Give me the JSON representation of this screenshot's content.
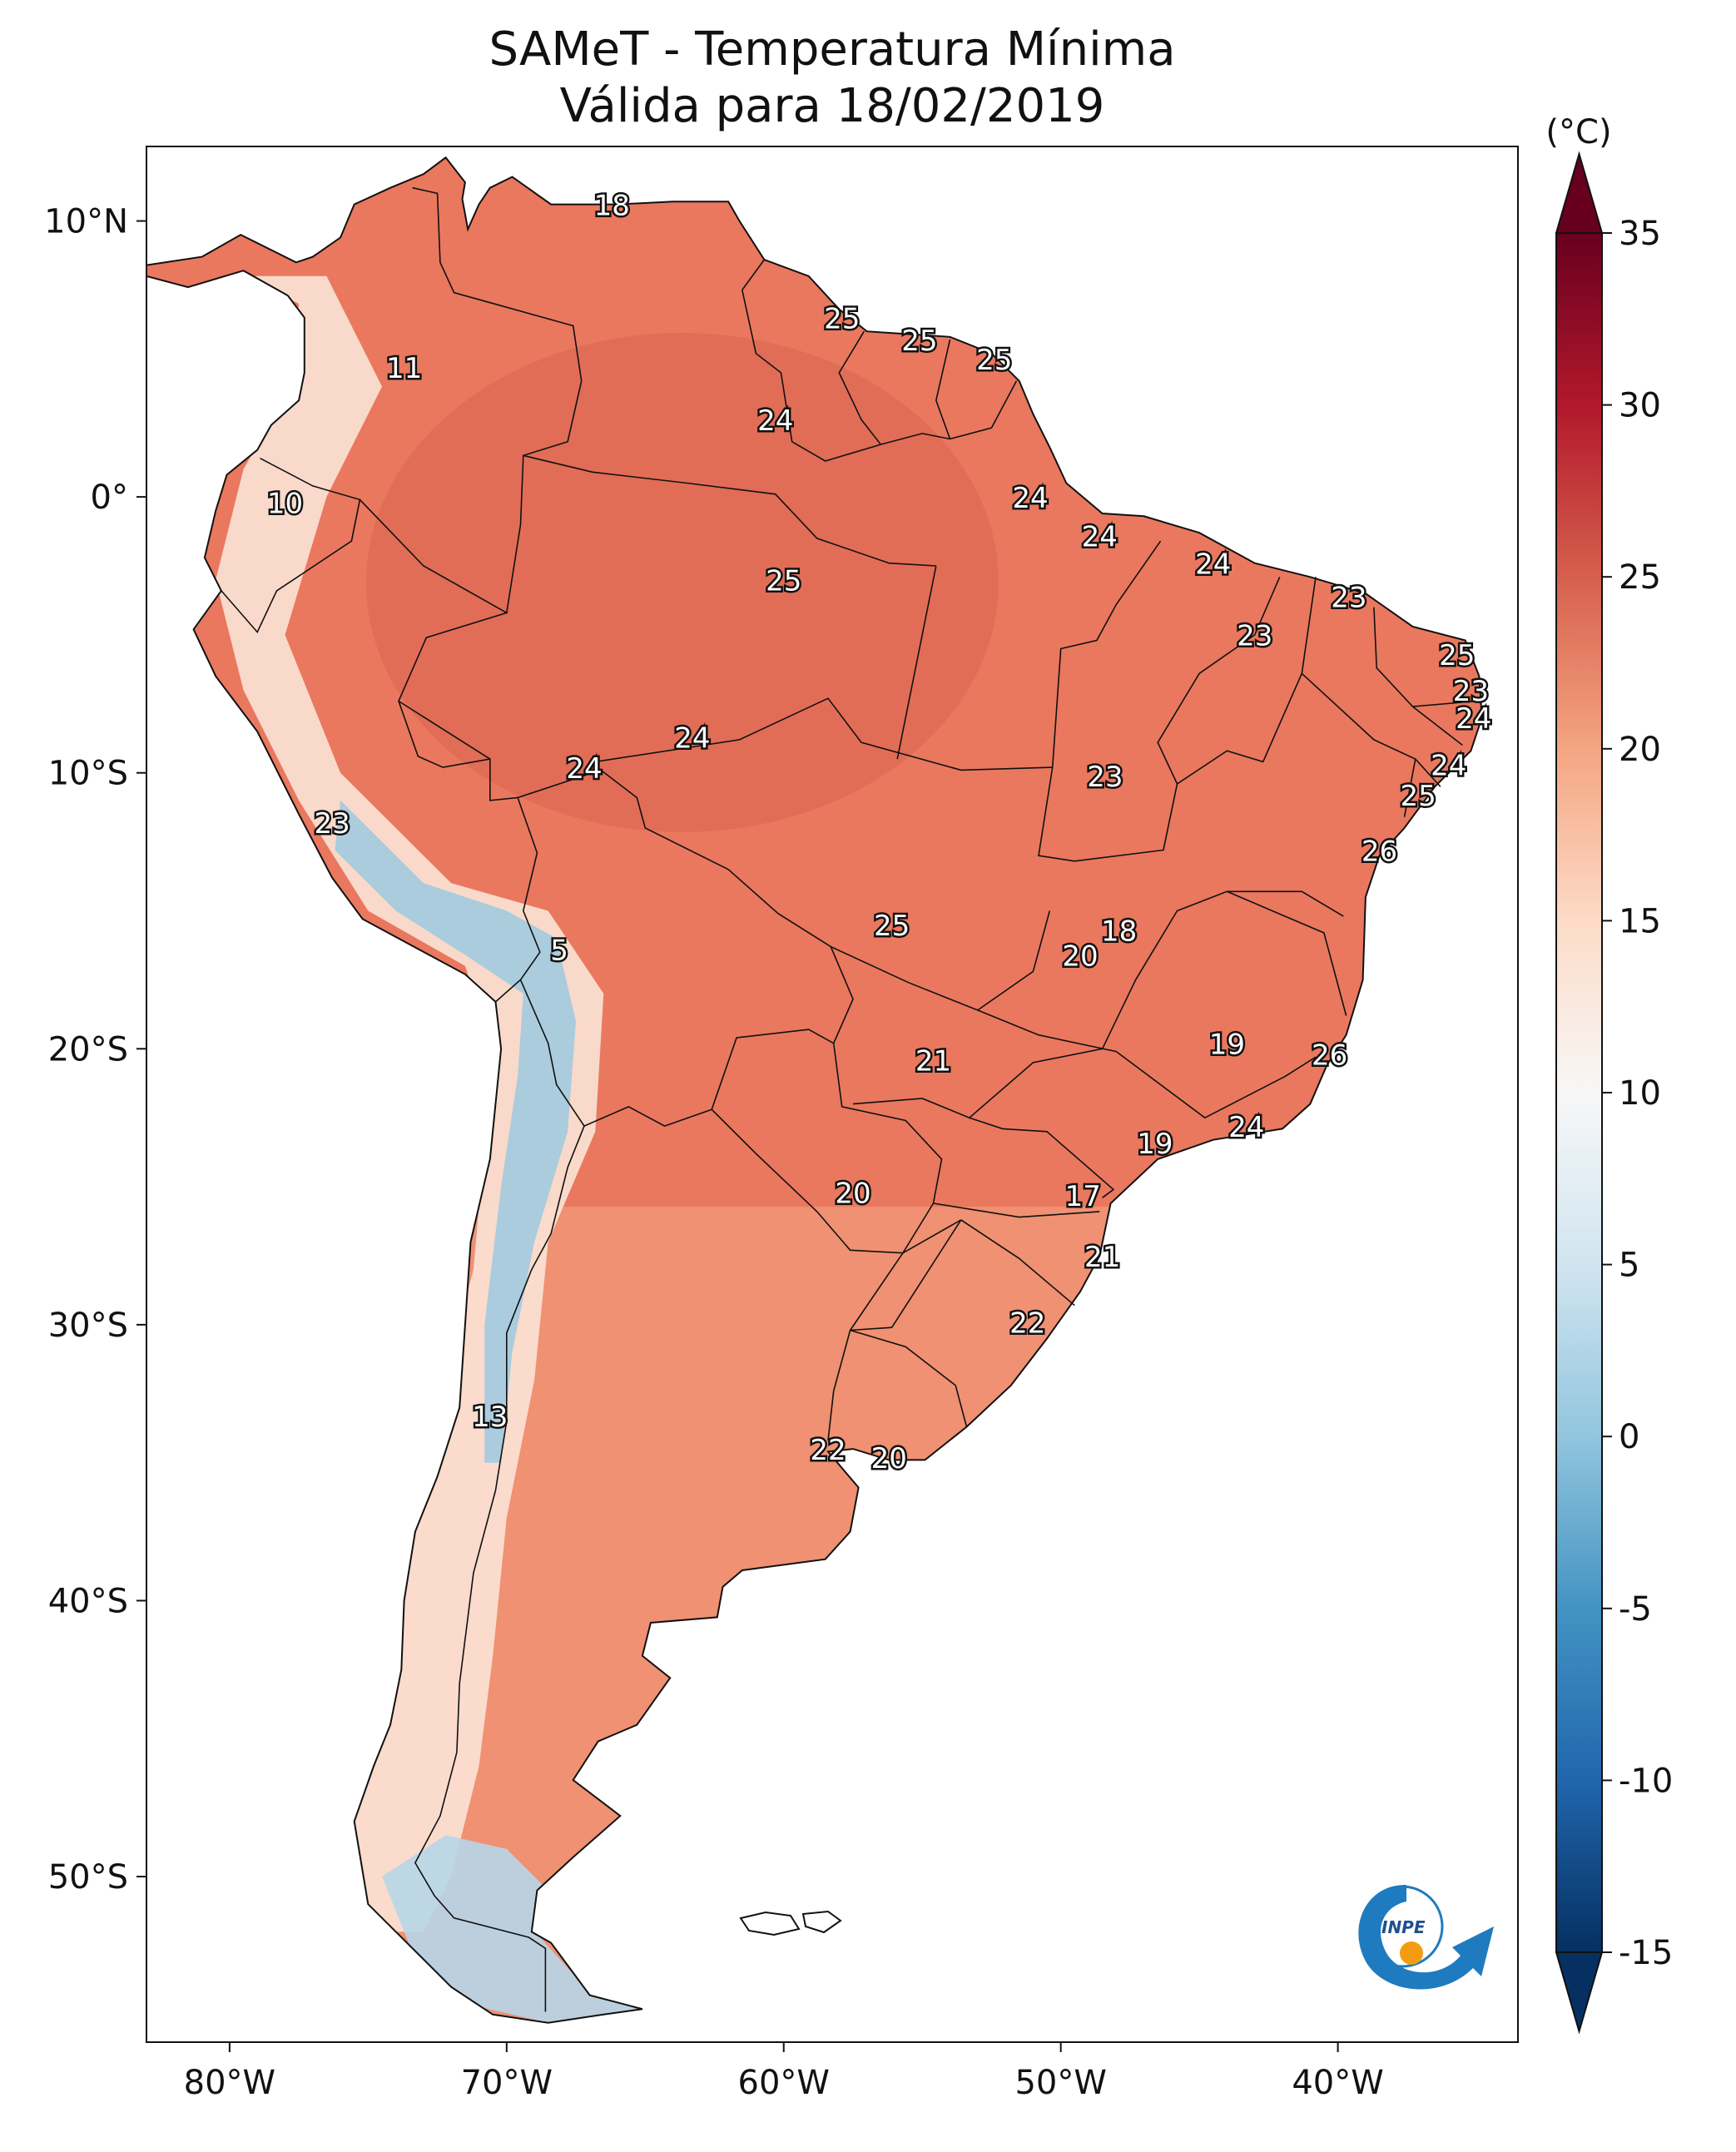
{
  "title": {
    "line1": "SAMeT - Temperatura Mínima",
    "line2": "Válida para 18/02/2019"
  },
  "axes": {
    "longitudes": [
      {
        "value": -80,
        "label": "80°W"
      },
      {
        "value": -70,
        "label": "70°W"
      },
      {
        "value": -60,
        "label": "60°W"
      },
      {
        "value": -50,
        "label": "50°W"
      },
      {
        "value": -40,
        "label": "40°W"
      }
    ],
    "latitudes": [
      {
        "value": 10,
        "label": "10°N"
      },
      {
        "value": 0,
        "label": "0°"
      },
      {
        "value": -10,
        "label": "10°S"
      },
      {
        "value": -20,
        "label": "20°S"
      },
      {
        "value": -30,
        "label": "30°S"
      },
      {
        "value": -40,
        "label": "40°S"
      },
      {
        "value": -50,
        "label": "50°S"
      }
    ],
    "lon_range": [
      -83,
      -33.5
    ],
    "lat_range": [
      -56,
      12.7
    ]
  },
  "colorbar": {
    "unit": "(°C)",
    "range": [
      -15,
      35
    ],
    "ticks": [
      {
        "value": 35,
        "label": "35"
      },
      {
        "value": 30,
        "label": "30"
      },
      {
        "value": 25,
        "label": "25"
      },
      {
        "value": 20,
        "label": "20"
      },
      {
        "value": 15,
        "label": "15"
      },
      {
        "value": 10,
        "label": "10"
      },
      {
        "value": 5,
        "label": "5"
      },
      {
        "value": 0,
        "label": "0"
      },
      {
        "value": -5,
        "label": "-5"
      },
      {
        "value": -10,
        "label": "-10"
      },
      {
        "value": -15,
        "label": "-15"
      }
    ],
    "colors": [
      "#053061",
      "#2166ac",
      "#4393c3",
      "#92c5de",
      "#d1e5f0",
      "#f7f7f7",
      "#fddbc7",
      "#f4a582",
      "#d6604d",
      "#b2182b",
      "#67001f"
    ]
  },
  "station_labels": [
    {
      "text": "18",
      "lon": -66.2,
      "lat": 10.5
    },
    {
      "text": "25",
      "lon": -57.9,
      "lat": 6.4
    },
    {
      "text": "25",
      "lon": -55.1,
      "lat": 5.6
    },
    {
      "text": "25",
      "lon": -52.4,
      "lat": 4.9
    },
    {
      "text": "11",
      "lon": -73.7,
      "lat": 4.6
    },
    {
      "text": "24",
      "lon": -60.3,
      "lat": 2.7
    },
    {
      "text": "10",
      "lon": -78.0,
      "lat": -0.3
    },
    {
      "text": "24",
      "lon": -51.1,
      "lat": -0.1
    },
    {
      "text": "24",
      "lon": -48.6,
      "lat": -1.5
    },
    {
      "text": "25",
      "lon": -60.0,
      "lat": -3.1
    },
    {
      "text": "24",
      "lon": -44.5,
      "lat": -2.5
    },
    {
      "text": "23",
      "lon": -39.6,
      "lat": -3.7
    },
    {
      "text": "23",
      "lon": -43.0,
      "lat": -5.1
    },
    {
      "text": "25",
      "lon": -35.7,
      "lat": -5.8
    },
    {
      "text": "23",
      "lon": -35.2,
      "lat": -7.1
    },
    {
      "text": "24",
      "lon": -35.1,
      "lat": -8.1
    },
    {
      "text": "24",
      "lon": -63.3,
      "lat": -8.8
    },
    {
      "text": "24",
      "lon": -67.2,
      "lat": -9.9
    },
    {
      "text": "23",
      "lon": -48.4,
      "lat": -10.2
    },
    {
      "text": "24",
      "lon": -36.0,
      "lat": -9.8
    },
    {
      "text": "25",
      "lon": -37.1,
      "lat": -10.9
    },
    {
      "text": "23",
      "lon": -76.3,
      "lat": -11.9
    },
    {
      "text": "26",
      "lon": -38.5,
      "lat": -12.9
    },
    {
      "text": "25",
      "lon": -56.1,
      "lat": -15.6
    },
    {
      "text": "18",
      "lon": -47.9,
      "lat": -15.8
    },
    {
      "text": "20",
      "lon": -49.3,
      "lat": -16.7
    },
    {
      "text": "5",
      "lon": -68.1,
      "lat": -16.5
    },
    {
      "text": "19",
      "lon": -44.0,
      "lat": -19.9
    },
    {
      "text": "21",
      "lon": -54.6,
      "lat": -20.5
    },
    {
      "text": "26",
      "lon": -40.3,
      "lat": -20.3
    },
    {
      "text": "24",
      "lon": -43.3,
      "lat": -22.9
    },
    {
      "text": "19",
      "lon": -46.6,
      "lat": -23.5
    },
    {
      "text": "20",
      "lon": -57.5,
      "lat": -25.3
    },
    {
      "text": "17",
      "lon": -49.2,
      "lat": -25.4
    },
    {
      "text": "21",
      "lon": -48.5,
      "lat": -27.6
    },
    {
      "text": "22",
      "lon": -51.2,
      "lat": -30.0
    },
    {
      "text": "13",
      "lon": -70.6,
      "lat": -33.4
    },
    {
      "text": "22",
      "lon": -58.4,
      "lat": -34.6
    },
    {
      "text": "20",
      "lon": -56.2,
      "lat": -34.9
    }
  ],
  "logo": {
    "text": "INPE"
  }
}
